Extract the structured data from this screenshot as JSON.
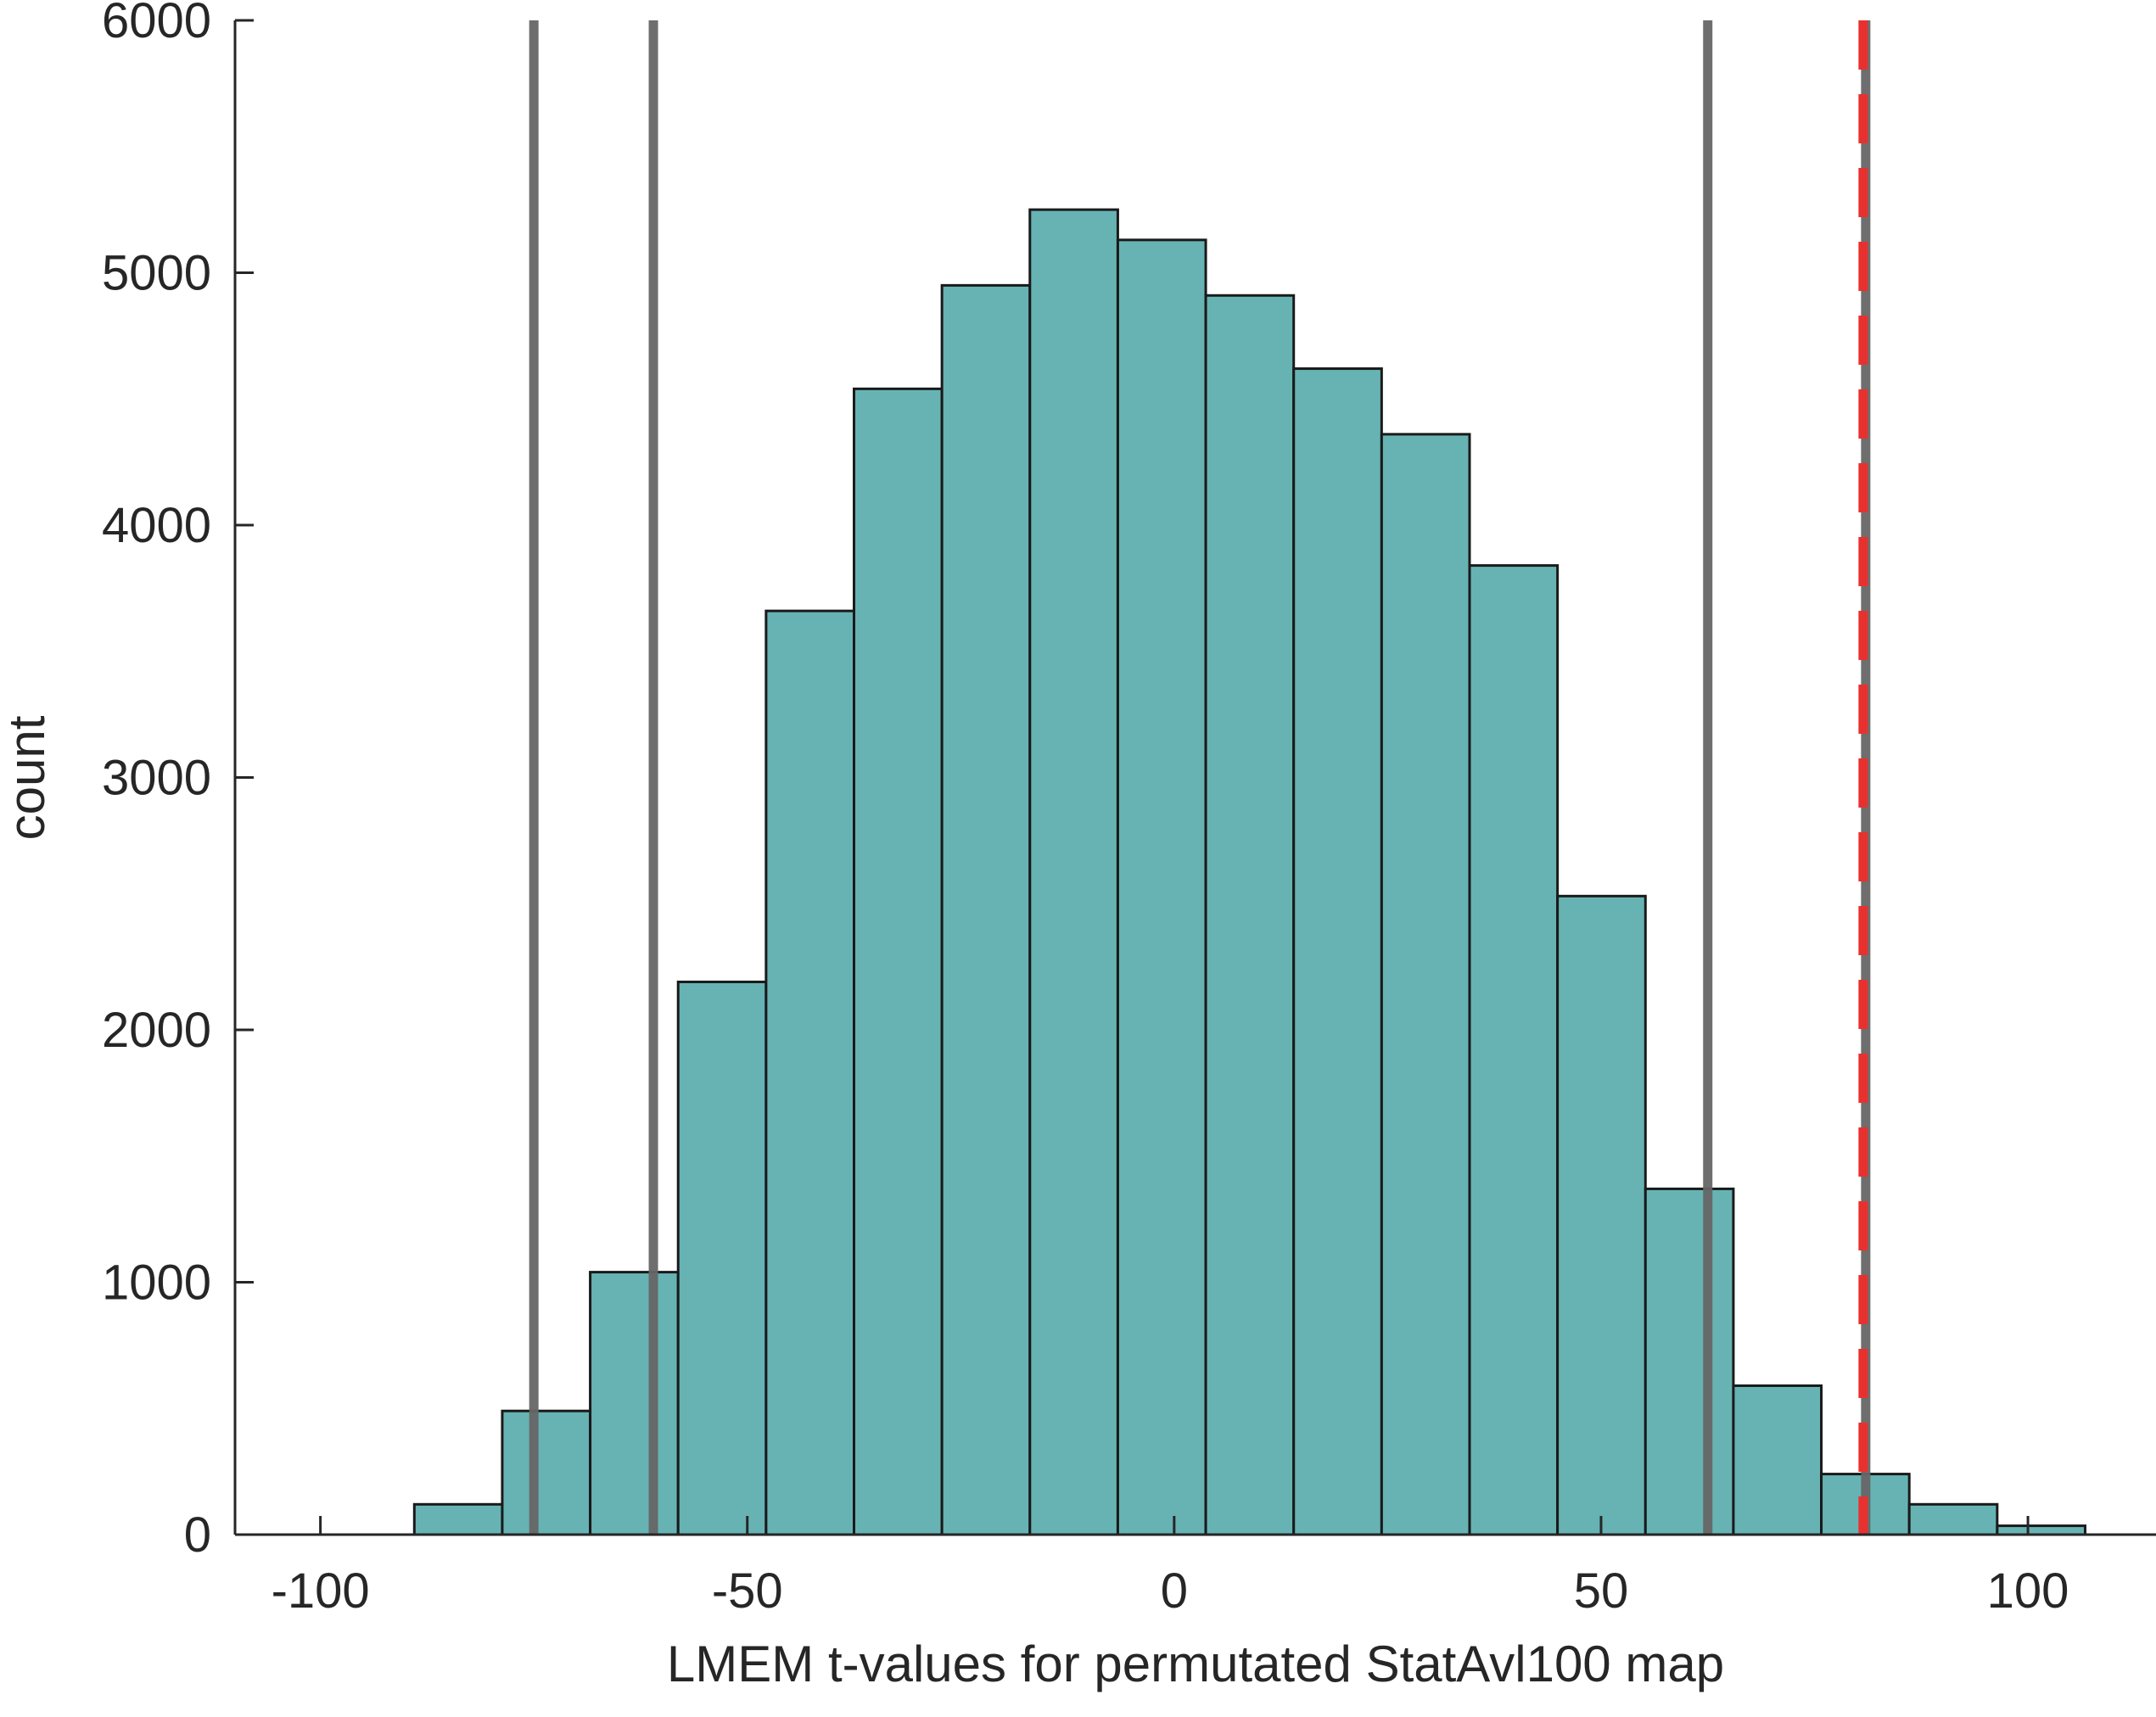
{
  "chart_data": {
    "type": "bar",
    "subtype": "histogram",
    "xlabel": "LMEM t-values for permutated StatAvl100 map",
    "ylabel": "count",
    "xlim": [
      -110,
      115
    ],
    "ylim": [
      0,
      6000
    ],
    "xticks": [
      -100,
      -50,
      0,
      50,
      100
    ],
    "xtick_labels": [
      "-100",
      "-50",
      "0",
      "50",
      "100"
    ],
    "yticks": [
      0,
      1000,
      2000,
      3000,
      4000,
      5000,
      6000
    ],
    "ytick_labels": [
      "0",
      "1000",
      "2000",
      "3000",
      "4000",
      "5000",
      "6000"
    ],
    "grid": false,
    "bin_edges": [
      -89,
      -78.7,
      -68.4,
      -58.1,
      -47.8,
      -37.5,
      -27.2,
      -16.9,
      -6.6,
      3.7,
      14.0,
      24.3,
      34.6,
      44.9,
      55.2,
      65.5,
      75.8,
      86.1,
      96.4,
      106.7
    ],
    "values": [
      120,
      490,
      1040,
      2190,
      3660,
      4540,
      4950,
      5250,
      5130,
      4910,
      4620,
      4360,
      3840,
      2530,
      1370,
      590,
      240,
      120,
      35
    ],
    "bar_color": "#67b3b4",
    "vertical_lines": [
      {
        "x": -75,
        "color": "#666666",
        "style": "solid"
      },
      {
        "x": -61,
        "color": "#666666",
        "style": "solid"
      },
      {
        "x": 62.5,
        "color": "#666666",
        "style": "solid"
      },
      {
        "x": 81,
        "color": "#666666",
        "style": "solid"
      },
      {
        "x": 80.7,
        "color": "#e8312f",
        "style": "dashed"
      }
    ]
  }
}
